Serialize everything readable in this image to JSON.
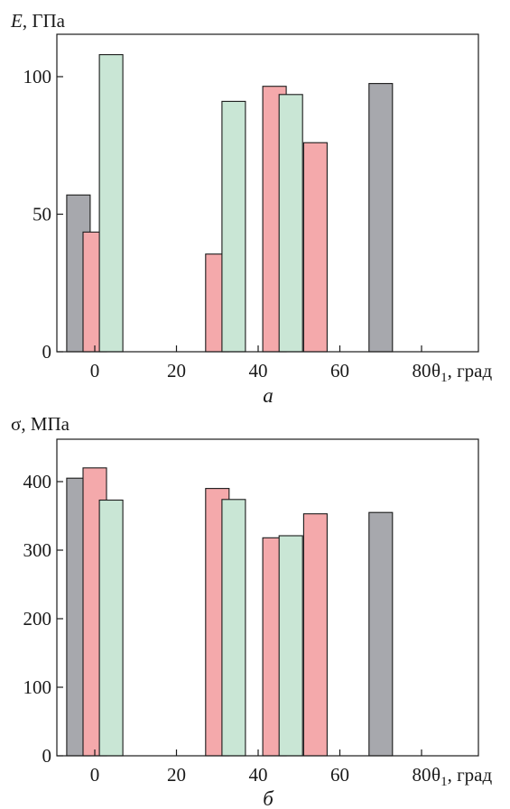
{
  "colors": {
    "gray": "#a7a8ad",
    "pink": "#f4a9ab",
    "green": "#c9e6d5",
    "axis": "#1a1a1a"
  },
  "chart_data": [
    {
      "type": "bar",
      "panel_label": "а",
      "ylabel_var": "E",
      "ylabel_unit": ", ГПа",
      "xlabel_var": "θ",
      "xlabel_sub": "1",
      "xlabel_unit": ", град",
      "xlim": [
        -5,
        87
      ],
      "ylim": [
        0,
        100
      ],
      "x_ticks": [
        0,
        20,
        40,
        60,
        80
      ],
      "x_tick_labels": [
        "0",
        "20",
        "40",
        "60",
        "80"
      ],
      "y_ticks": [
        0,
        50,
        100
      ],
      "y_tick_labels": [
        "0",
        "50",
        "100"
      ],
      "bars": [
        {
          "x": -4,
          "value": 57,
          "color": "gray"
        },
        {
          "x": 0,
          "value": 43.5,
          "color": "pink"
        },
        {
          "x": 4,
          "value": 108,
          "color": "green"
        },
        {
          "x": 30,
          "value": 35.5,
          "color": "pink"
        },
        {
          "x": 34,
          "value": 91,
          "color": "green"
        },
        {
          "x": 44,
          "value": 96.5,
          "color": "pink"
        },
        {
          "x": 48,
          "value": 93.5,
          "color": "green"
        },
        {
          "x": 54,
          "value": 76,
          "color": "pink"
        },
        {
          "x": 70,
          "value": 97.5,
          "color": "gray"
        }
      ]
    },
    {
      "type": "bar",
      "panel_label": "б",
      "ylabel_var": "σ",
      "ylabel_unit": ", МПа",
      "xlabel_var": "θ",
      "xlabel_sub": "1",
      "xlabel_unit": ", град",
      "xlim": [
        -5,
        87
      ],
      "ylim": [
        0,
        400
      ],
      "x_ticks": [
        0,
        20,
        40,
        60,
        80
      ],
      "x_tick_labels": [
        "0",
        "20",
        "40",
        "60",
        "80"
      ],
      "y_ticks": [
        0,
        100,
        200,
        300,
        400
      ],
      "y_tick_labels": [
        "0",
        "100",
        "200",
        "300",
        "400"
      ],
      "bars": [
        {
          "x": -4,
          "value": 405,
          "color": "gray"
        },
        {
          "x": 0,
          "value": 420,
          "color": "pink"
        },
        {
          "x": 4,
          "value": 373,
          "color": "green"
        },
        {
          "x": 30,
          "value": 390,
          "color": "pink"
        },
        {
          "x": 34,
          "value": 374,
          "color": "green"
        },
        {
          "x": 44,
          "value": 318,
          "color": "pink"
        },
        {
          "x": 48,
          "value": 321,
          "color": "green"
        },
        {
          "x": 54,
          "value": 353,
          "color": "pink"
        },
        {
          "x": 70,
          "value": 355,
          "color": "gray"
        }
      ]
    }
  ]
}
